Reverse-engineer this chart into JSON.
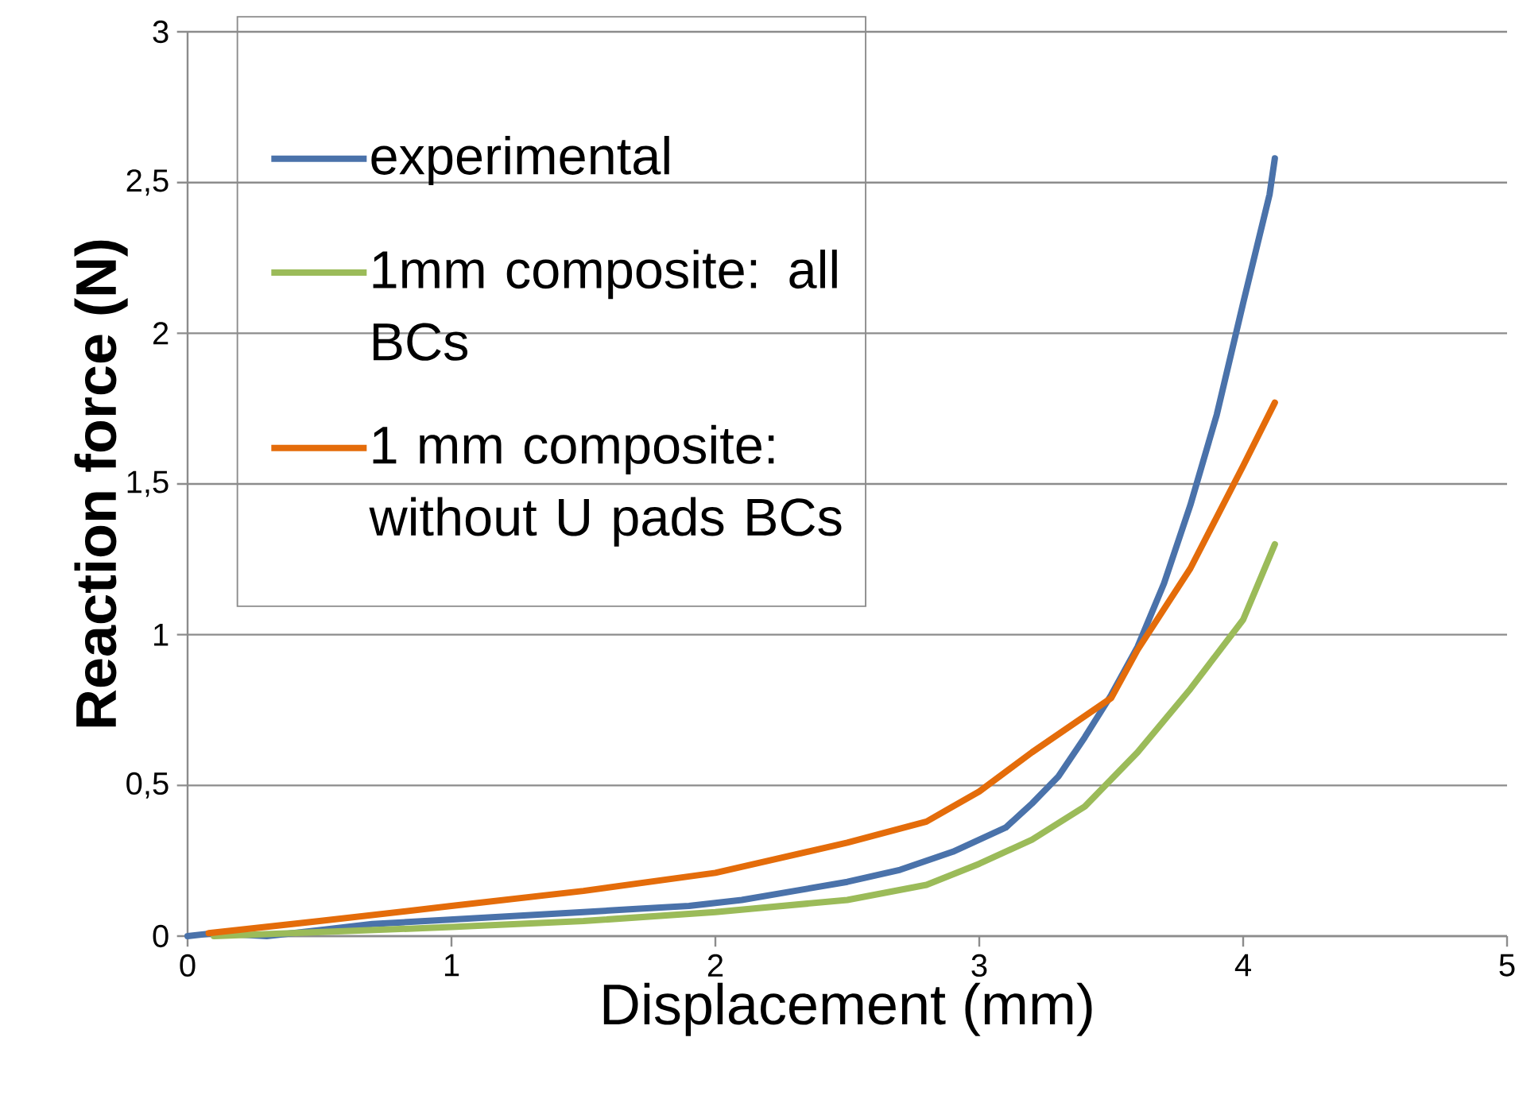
{
  "chart_data": {
    "type": "line",
    "xlabel": "Displacement (mm)",
    "ylabel": "**Reaction force (N)**",
    "xlim": [
      0,
      5
    ],
    "ylim": [
      0,
      3
    ],
    "xticks": [
      0,
      1,
      2,
      3,
      4,
      5
    ],
    "yticks": [
      0,
      {
        "value": 0.5,
        "label": "0,5"
      },
      1,
      {
        "value": 1.5,
        "label": "1,5"
      },
      2,
      {
        "value": 2.5,
        "label": "2,5"
      },
      3
    ],
    "grid": "y",
    "legend": "top left",
    "marker": "none",
    "line_style": "solid",
    "series": [
      {
        "name": "experimental",
        "color": "#4a72aa",
        "x": [
          0,
          0.1,
          0.3,
          0.5,
          0.7,
          0.9,
          1.1,
          1.3,
          1.5,
          1.7,
          1.9,
          2.1,
          2.3,
          2.5,
          2.7,
          2.9,
          3.0,
          3.1,
          3.2,
          3.3,
          3.4,
          3.5,
          3.6,
          3.7,
          3.8,
          3.9,
          4.0,
          4.1,
          4.12
        ],
        "values": [
          0,
          0.01,
          0,
          0.02,
          0.04,
          0.05,
          0.06,
          0.07,
          0.08,
          0.09,
          0.1,
          0.12,
          0.15,
          0.18,
          0.22,
          0.28,
          0.32,
          0.36,
          0.44,
          0.53,
          0.66,
          0.8,
          0.96,
          1.17,
          1.43,
          1.73,
          2.1,
          2.46,
          2.58
        ]
      },
      {
        "name": "1mm composite: all BCs",
        "color": "#9bbb59",
        "x": [
          0.1,
          1,
          1.5,
          2,
          2.5,
          2.8,
          3,
          3.2,
          3.4,
          3.6,
          3.8,
          4,
          4.12
        ],
        "values": [
          0,
          0.03,
          0.05,
          0.08,
          0.12,
          0.17,
          0.24,
          0.32,
          0.43,
          0.61,
          0.82,
          1.05,
          1.3
        ]
      },
      {
        "name": "1 mm composite: without U pads BCs",
        "color": "#e46c0a",
        "x": [
          0.08,
          0.5,
          1,
          1.5,
          2,
          2.5,
          2.8,
          3,
          3.2,
          3.4,
          3.5,
          3.6,
          3.8,
          4,
          4.12
        ],
        "values": [
          0.01,
          0.05,
          0.1,
          0.15,
          0.21,
          0.31,
          0.38,
          0.48,
          0.61,
          0.73,
          0.79,
          0.95,
          1.22,
          1.56,
          1.77
        ]
      }
    ]
  }
}
